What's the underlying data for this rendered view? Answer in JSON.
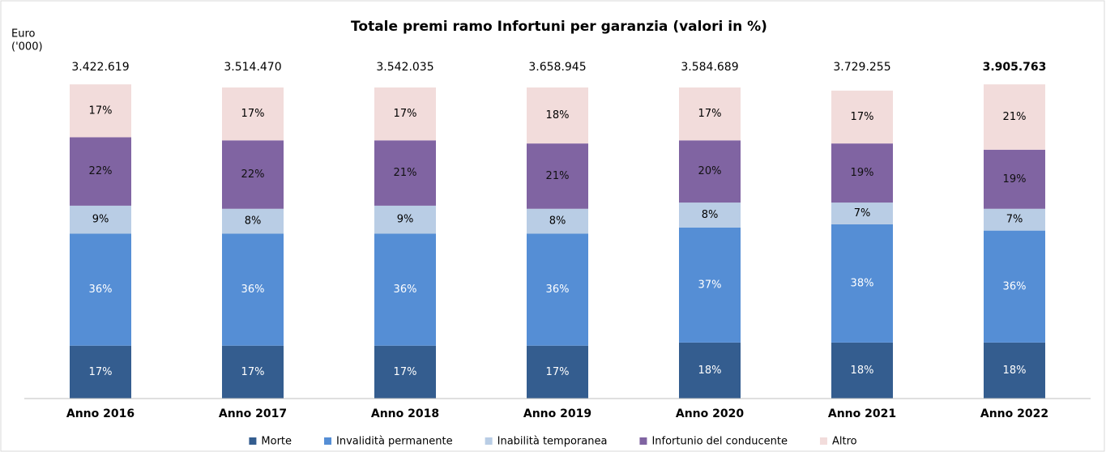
{
  "chart_data": {
    "type": "stacked_bar",
    "title": "Totale premi ramo Infortuni per garanzia (valori in %)",
    "y_label": [
      "Euro",
      "('000)"
    ],
    "categories": [
      "Anno 2016",
      "Anno 2017",
      "Anno 2018",
      "Anno 2019",
      "Anno 2020",
      "Anno 2021",
      "Anno 2022"
    ],
    "totals": [
      "3.422.619",
      "3.514.470",
      "3.542.035",
      "3.658.945",
      "3.584.689",
      "3.729.255",
      "3.905.763"
    ],
    "ylim": [
      0,
      100
    ],
    "legend": "bottom",
    "series": [
      {
        "name": "Morte",
        "color": "#345d8f",
        "values": [
          17,
          17,
          17,
          17,
          18,
          18,
          18
        ],
        "value_labels": [
          "17%",
          "17%",
          "17%",
          "17%",
          "18%",
          "18%",
          "18%"
        ]
      },
      {
        "name": "Invalidità permanente",
        "color": "#558ed5",
        "values": [
          36,
          36,
          36,
          36,
          37,
          38,
          36
        ],
        "value_labels": [
          "36%",
          "36%",
          "36%",
          "36%",
          "37%",
          "38%",
          "36%"
        ]
      },
      {
        "name": "Inabilità temporanea",
        "color": "#b9cde5",
        "values": [
          9,
          8,
          9,
          8,
          8,
          7,
          7
        ],
        "value_labels": [
          "9%",
          "8%",
          "9%",
          "8%",
          "8%",
          "7%",
          "7%"
        ]
      },
      {
        "name": "Infortunio del conducente",
        "color": "#8064a2",
        "values": [
          22,
          22,
          21,
          21,
          20,
          19,
          19
        ],
        "value_labels": [
          "22%",
          "22%",
          "21%",
          "21%",
          "20%",
          "19%",
          "19%"
        ]
      },
      {
        "name": "Altro",
        "color": "#f2dcdb",
        "values": [
          17,
          17,
          17,
          18,
          17,
          17,
          21
        ],
        "value_labels": [
          "17%",
          "17%",
          "17%",
          "18%",
          "17%",
          "17%",
          "21%"
        ]
      }
    ]
  }
}
